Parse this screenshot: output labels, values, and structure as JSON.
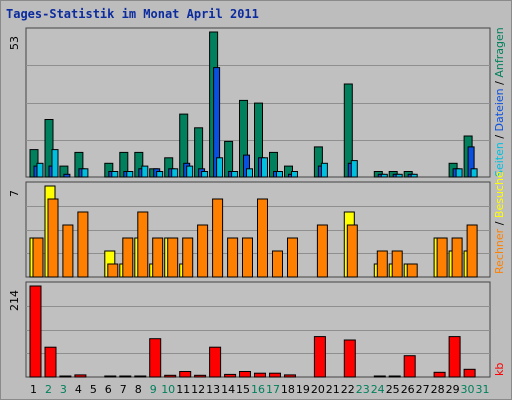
{
  "title": "Tages-Statistik im Monat April 2011",
  "colors": {
    "frame": "#bdbdbd",
    "plot_bg": "#c0c0c0",
    "grid": "#8f8f8f",
    "axis_day": "#000000",
    "axis_weekend": "#00805c",
    "hits": "#00805c",
    "files": "#0a50e0",
    "pages": "#00c0e0",
    "visits": "#ffff00",
    "sites": "#ff8000",
    "kbytes": "#ff0000",
    "title": "#0b2b9e"
  },
  "chart_data": [
    {
      "type": "bar",
      "name": "panel-hits-files-pages",
      "ymax_label": "53",
      "ylim": [
        0,
        53
      ],
      "legend": [
        "Anfragen",
        "Dateien",
        "Seiten"
      ],
      "series": [
        {
          "name": "Anfragen",
          "color": "#00805c",
          "values": [
            10,
            21,
            4,
            9,
            0,
            5,
            9,
            9,
            3,
            7,
            23,
            18,
            53,
            13,
            28,
            27,
            9,
            4,
            0,
            11,
            0,
            34,
            0,
            2,
            2,
            2,
            0,
            0,
            5,
            15,
            0
          ]
        },
        {
          "name": "Dateien",
          "color": "#0a50e0",
          "values": [
            4,
            4,
            1,
            3,
            0,
            2,
            2,
            3,
            3,
            3,
            5,
            3,
            40,
            2,
            8,
            7,
            2,
            1,
            0,
            4,
            0,
            5,
            0,
            1,
            1,
            1,
            0,
            0,
            3,
            11,
            0
          ]
        },
        {
          "name": "Seiten",
          "color": "#00c0e0",
          "values": [
            5,
            10,
            0,
            3,
            0,
            2,
            2,
            4,
            2,
            3,
            4,
            2,
            7,
            2,
            3,
            7,
            2,
            2,
            0,
            5,
            0,
            6,
            0,
            1,
            1,
            1,
            0,
            0,
            3,
            3,
            0
          ]
        }
      ]
    },
    {
      "type": "bar",
      "name": "panel-visits-sites",
      "ymax_label": "7",
      "ylim": [
        0,
        7
      ],
      "legend": [
        "Besuche",
        "Rechner"
      ],
      "series": [
        {
          "name": "Besuche",
          "color": "#ffff00",
          "values": [
            3,
            7,
            0,
            0,
            0,
            2,
            1,
            3,
            1,
            3,
            1,
            0,
            0,
            0,
            0,
            0,
            0,
            0,
            0,
            0,
            0,
            5,
            0,
            1,
            1,
            1,
            0,
            3,
            2,
            2,
            0
          ]
        },
        {
          "name": "Rechner",
          "color": "#ff8000",
          "values": [
            3,
            6,
            4,
            5,
            0,
            1,
            3,
            5,
            3,
            3,
            3,
            4,
            6,
            3,
            3,
            6,
            2,
            3,
            0,
            4,
            0,
            4,
            0,
            2,
            2,
            1,
            0,
            3,
            3,
            4,
            0
          ]
        }
      ]
    },
    {
      "type": "bar",
      "name": "panel-kbytes",
      "ymax_label": "214",
      "ylim": [
        0,
        214
      ],
      "legend": [
        "kb"
      ],
      "series": [
        {
          "name": "kb",
          "color": "#ff0000",
          "values": [
            214,
            70,
            2,
            5,
            0,
            2,
            2,
            2,
            90,
            4,
            13,
            4,
            70,
            6,
            13,
            9,
            9,
            5,
            0,
            95,
            0,
            87,
            0,
            2,
            2,
            50,
            0,
            11,
            95,
            18,
            0
          ]
        }
      ]
    }
  ],
  "x_axis": {
    "labels": [
      "1",
      "2",
      "3",
      "4",
      "5",
      "6",
      "7",
      "8",
      "9",
      "10",
      "11",
      "12",
      "13",
      "14",
      "15",
      "16",
      "17",
      "18",
      "19",
      "20",
      "21",
      "22",
      "23",
      "24",
      "25",
      "26",
      "27",
      "28",
      "29",
      "30",
      "31"
    ],
    "weekend": [
      2,
      3,
      9,
      10,
      16,
      17,
      23,
      24,
      30,
      31
    ]
  }
}
